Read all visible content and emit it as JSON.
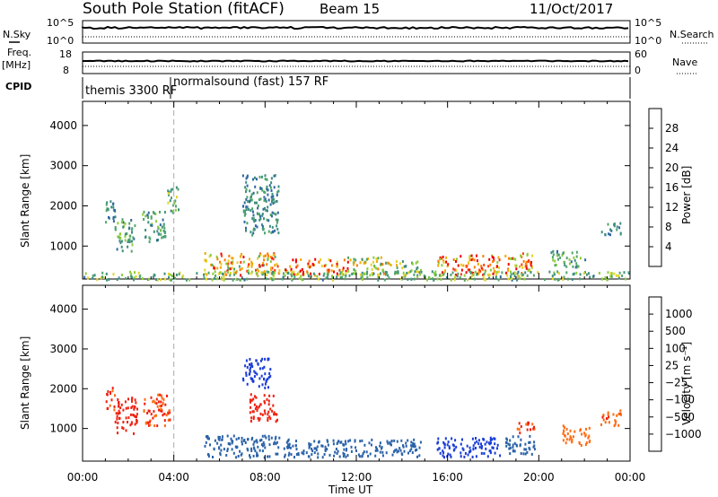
{
  "header": {
    "title": "South Pole Station (fitACF)",
    "beam": "Beam 15",
    "date": "11/Oct/2017"
  },
  "summary": {
    "nsky_label": "N.Sky",
    "freq_label": "Freq.",
    "freq_unit": "[MHz]",
    "cpid_label": "CPID",
    "nsky_ticks": [
      "10^5",
      "10^0"
    ],
    "freq_ticks": [
      "18",
      "8"
    ],
    "nsearch_label": "N.Search",
    "nave_label": "Nave",
    "nsearch_ticks": [
      "10^5",
      "10^0"
    ],
    "nave_ticks": [
      "60",
      "0"
    ],
    "cpid_segments": [
      "themis 3300 RF",
      "normalsound (fast) 157 RF"
    ]
  },
  "power_panel": {
    "ylabel": "Slant Range [km]",
    "colorbar_label": "Power [dB]",
    "colorbar_ticks": [
      "28",
      "24",
      "20",
      "16",
      "12",
      "8",
      "4"
    ],
    "colors": [
      "#0018f0",
      "#1e3ea8",
      "#2f68a0",
      "#3f8f7e",
      "#4fa66a",
      "#8ccd3c",
      "#e4d229",
      "#f4a800",
      "#ff7a00",
      "#ff3a10",
      "#f00000"
    ]
  },
  "velocity_panel": {
    "ylabel": "Slant Range [km]",
    "colorbar_label": "Velocity [m s⁻¹]",
    "colorbar_ticks": [
      "1000",
      "500",
      "100",
      "25",
      "−25",
      "−100",
      "−500",
      "−1000"
    ],
    "colors": [
      "#1a3cd8",
      "#2a62a8",
      "#3a8a78",
      "#4ea85e",
      "#86c940",
      "#c0c0c0",
      "#f3c000",
      "#ff9a00",
      "#ff6a10",
      "#f02010"
    ]
  },
  "x_axis": {
    "label": "Time UT",
    "ticks": [
      "00:00",
      "04:00",
      "08:00",
      "12:00",
      "16:00",
      "20:00",
      "00:00"
    ]
  },
  "chart_data": [
    {
      "type": "heatmap",
      "title": "South Pole Station (fitACF) Beam 15 11/Oct/2017",
      "xlabel": "Time UT",
      "ylabel": "Slant Range [km]",
      "value_label": "Power [dB]",
      "xlim_hours": [
        0,
        24
      ],
      "ylim_km": [
        180,
        4600
      ],
      "y_ticks": [
        1000,
        2000,
        3000,
        4000
      ],
      "value_ticks": [
        4,
        8,
        12,
        16,
        20,
        24,
        28
      ],
      "regions": [
        {
          "t": [
            0.9,
            1.4
          ],
          "r": [
            1550,
            2200
          ],
          "power": 10
        },
        {
          "t": [
            1.4,
            2.3
          ],
          "r": [
            900,
            1700
          ],
          "power": 12
        },
        {
          "t": [
            2.6,
            3.6
          ],
          "r": [
            1100,
            1900
          ],
          "power": 11
        },
        {
          "t": [
            3.7,
            4.2
          ],
          "r": [
            1800,
            2500
          ],
          "power": 14
        },
        {
          "t": [
            5.3,
            8.6
          ],
          "r": [
            300,
            850
          ],
          "power": 22
        },
        {
          "t": [
            7.0,
            8.6
          ],
          "r": [
            1300,
            2800
          ],
          "power": 10
        },
        {
          "t": [
            8.8,
            11.6
          ],
          "r": [
            300,
            700
          ],
          "power": 26
        },
        {
          "t": [
            11.6,
            13.5
          ],
          "r": [
            300,
            750
          ],
          "power": 18
        },
        {
          "t": [
            13.6,
            14.8
          ],
          "r": [
            300,
            650
          ],
          "power": 15
        },
        {
          "t": [
            15.5,
            18.3
          ],
          "r": [
            300,
            800
          ],
          "power": 26
        },
        {
          "t": [
            18.5,
            19.8
          ],
          "r": [
            350,
            850
          ],
          "power": 24
        },
        {
          "t": [
            20.5,
            22.0
          ],
          "r": [
            500,
            900
          ],
          "power": 12
        },
        {
          "t": [
            22.7,
            23.6
          ],
          "r": [
            1300,
            1600
          ],
          "power": 9
        },
        {
          "t": [
            0.0,
            24.0
          ],
          "r": [
            180,
            400
          ],
          "power": 14
        }
      ]
    },
    {
      "type": "heatmap",
      "title": "South Pole Station (fitACF) Beam 15 11/Oct/2017",
      "xlabel": "Time UT",
      "ylabel": "Slant Range [km]",
      "value_label": "Velocity [m s⁻¹]",
      "xlim_hours": [
        0,
        24
      ],
      "ylim_km": [
        180,
        4600
      ],
      "y_ticks": [
        1000,
        2000,
        3000,
        4000
      ],
      "value_ticks": [
        1000,
        500,
        100,
        25,
        -25,
        -100,
        -500,
        -1000
      ],
      "regions": [
        {
          "t": [
            1.0,
            1.4
          ],
          "r": [
            1500,
            2100
          ],
          "velocity": -300
        },
        {
          "t": [
            1.4,
            2.4
          ],
          "r": [
            900,
            1800
          ],
          "velocity": -400
        },
        {
          "t": [
            2.6,
            3.8
          ],
          "r": [
            1100,
            1900
          ],
          "velocity": -250
        },
        {
          "t": [
            5.3,
            8.6
          ],
          "r": [
            300,
            850
          ],
          "velocity": 150
        },
        {
          "t": [
            7.0,
            8.2
          ],
          "r": [
            2000,
            2800
          ],
          "velocity": 600
        },
        {
          "t": [
            7.3,
            8.5
          ],
          "r": [
            1200,
            1900
          ],
          "velocity": -500
        },
        {
          "t": [
            8.8,
            14.8
          ],
          "r": [
            300,
            750
          ],
          "velocity": 150
        },
        {
          "t": [
            15.5,
            18.3
          ],
          "r": [
            300,
            800
          ],
          "velocity": 600
        },
        {
          "t": [
            18.5,
            19.8
          ],
          "r": [
            350,
            850
          ],
          "velocity": 120
        },
        {
          "t": [
            19.0,
            19.8
          ],
          "r": [
            900,
            1200
          ],
          "velocity": -300
        },
        {
          "t": [
            21.0,
            22.2
          ],
          "r": [
            600,
            1100
          ],
          "velocity": -150
        },
        {
          "t": [
            22.7,
            23.6
          ],
          "r": [
            1100,
            1500
          ],
          "velocity": -200
        }
      ]
    }
  ]
}
